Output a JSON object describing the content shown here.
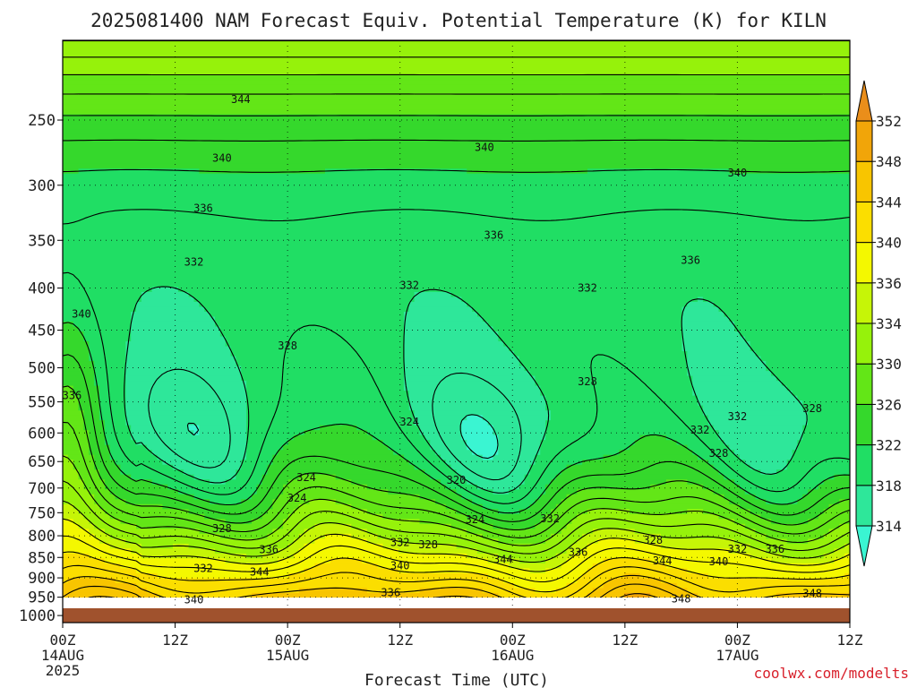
{
  "chart_data": {
    "type": "heatmap",
    "title": "2025081400 NAM Forecast Equiv. Potential Temperature (K) for KILN",
    "xlabel": "Forecast Time (UTC)",
    "ylabel": "",
    "credit": "coolwx.com/modelts",
    "x_ticks": [
      {
        "hour": 0,
        "label": "00Z",
        "sub": "14AUG",
        "sub2": "2025"
      },
      {
        "hour": 12,
        "label": "12Z",
        "sub": "",
        "sub2": ""
      },
      {
        "hour": 24,
        "label": "00Z",
        "sub": "15AUG",
        "sub2": ""
      },
      {
        "hour": 36,
        "label": "12Z",
        "sub": "",
        "sub2": ""
      },
      {
        "hour": 48,
        "label": "00Z",
        "sub": "16AUG",
        "sub2": ""
      },
      {
        "hour": 60,
        "label": "12Z",
        "sub": "",
        "sub2": ""
      },
      {
        "hour": 72,
        "label": "00Z",
        "sub": "17AUG",
        "sub2": ""
      },
      {
        "hour": 84,
        "label": "12Z",
        "sub": "",
        "sub2": ""
      }
    ],
    "xlim": [
      0,
      84
    ],
    "y_ticks": [
      250,
      300,
      350,
      400,
      450,
      500,
      550,
      600,
      650,
      700,
      750,
      800,
      850,
      900,
      950,
      1000
    ],
    "ylim_hpa": [
      200,
      1020
    ],
    "y_scale": "log-pressure",
    "colorbar": {
      "levels": [
        314,
        318,
        322,
        326,
        330,
        334,
        336,
        340,
        344,
        348,
        352
      ],
      "colors": [
        "#3af5d2",
        "#2ee79a",
        "#20de64",
        "#35d82c",
        "#63e617",
        "#96f20b",
        "#c6f507",
        "#f4f800",
        "#fbde00",
        "#f8c500",
        "#f1a509",
        "#ea8e1a"
      ]
    },
    "ground_color": "#a0522d",
    "ground_level_hpa": 980,
    "contour_labels": [
      {
        "t": 19,
        "p": 236,
        "v": "344"
      },
      {
        "t": 17,
        "p": 278,
        "v": "340"
      },
      {
        "t": 45,
        "p": 270,
        "v": "340"
      },
      {
        "t": 72,
        "p": 290,
        "v": "340"
      },
      {
        "t": 15,
        "p": 320,
        "v": "336"
      },
      {
        "t": 46,
        "p": 345,
        "v": "336"
      },
      {
        "t": 67,
        "p": 370,
        "v": "336"
      },
      {
        "t": 14,
        "p": 372,
        "v": "332"
      },
      {
        "t": 37,
        "p": 397,
        "v": "332"
      },
      {
        "t": 56,
        "p": 400,
        "v": "332"
      },
      {
        "t": 2,
        "p": 430,
        "v": "340"
      },
      {
        "t": 24,
        "p": 470,
        "v": "328"
      },
      {
        "t": 1,
        "p": 540,
        "v": "336"
      },
      {
        "t": 37,
        "p": 582,
        "v": "324"
      },
      {
        "t": 56,
        "p": 520,
        "v": "328"
      },
      {
        "t": 72,
        "p": 573,
        "v": "332"
      },
      {
        "t": 68,
        "p": 595,
        "v": "332"
      },
      {
        "t": 70,
        "p": 635,
        "v": "328"
      },
      {
        "t": 80,
        "p": 560,
        "v": "328"
      },
      {
        "t": 26,
        "p": 680,
        "v": "324"
      },
      {
        "t": 42,
        "p": 685,
        "v": "320"
      },
      {
        "t": 25,
        "p": 720,
        "v": "324"
      },
      {
        "t": 44,
        "p": 765,
        "v": "324"
      },
      {
        "t": 52,
        "p": 763,
        "v": "332"
      },
      {
        "t": 17,
        "p": 784,
        "v": "328"
      },
      {
        "t": 36,
        "p": 815,
        "v": "332"
      },
      {
        "t": 39,
        "p": 820,
        "v": "328"
      },
      {
        "t": 63,
        "p": 810,
        "v": "328"
      },
      {
        "t": 22,
        "p": 832,
        "v": "336"
      },
      {
        "t": 55,
        "p": 838,
        "v": "336"
      },
      {
        "t": 72,
        "p": 830,
        "v": "332"
      },
      {
        "t": 76,
        "p": 830,
        "v": "336"
      },
      {
        "t": 15,
        "p": 876,
        "v": "332"
      },
      {
        "t": 21,
        "p": 885,
        "v": "344"
      },
      {
        "t": 36,
        "p": 870,
        "v": "340"
      },
      {
        "t": 47,
        "p": 855,
        "v": "344"
      },
      {
        "t": 64,
        "p": 858,
        "v": "344"
      },
      {
        "t": 70,
        "p": 860,
        "v": "340"
      },
      {
        "t": 35,
        "p": 938,
        "v": "336"
      },
      {
        "t": 14,
        "p": 957,
        "v": "340"
      },
      {
        "t": 66,
        "p": 955,
        "v": "348"
      },
      {
        "t": 80,
        "p": 940,
        "v": "348"
      }
    ]
  }
}
